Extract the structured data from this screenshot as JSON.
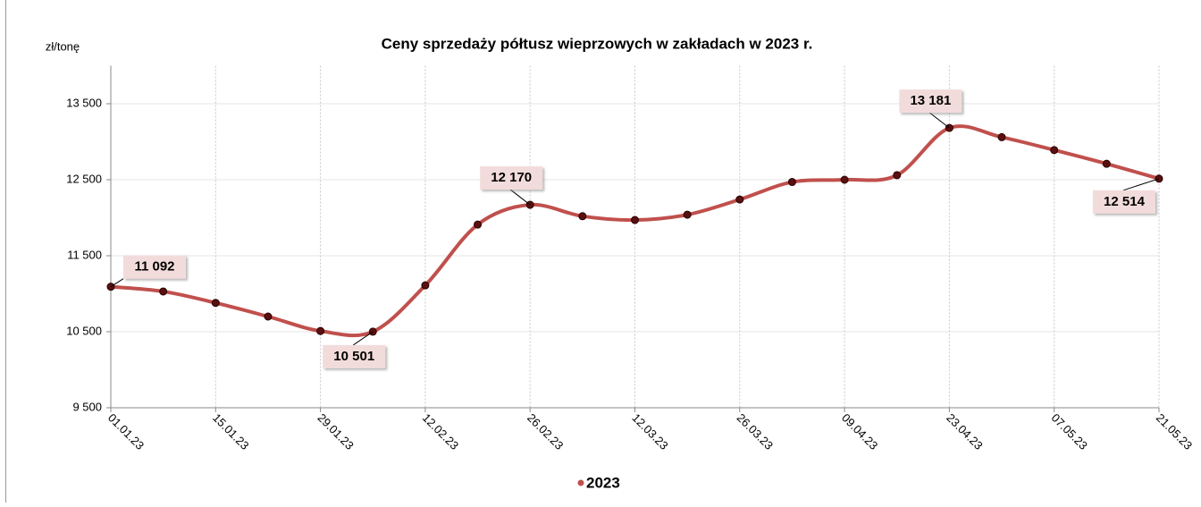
{
  "chart_data": {
    "type": "line",
    "title": "Ceny sprzedaży półtusz wieprzowych w zakładach w 2023 r.",
    "y_label": "zł/tonę",
    "categories": [
      "01.01.23",
      null,
      "15.01.23",
      null,
      "29.01.23",
      null,
      "12.02.23",
      null,
      "26.02.23",
      null,
      "12.03.23",
      null,
      "26.03.23",
      null,
      "09.04.23",
      null,
      "23.04.23",
      null,
      "07.05.23",
      null,
      "21.05.23"
    ],
    "series": [
      {
        "name": "2023",
        "color": "#c0504d",
        "values": [
          11092,
          11030,
          10880,
          10700,
          10510,
          10501,
          11110,
          11910,
          12170,
          12020,
          11970,
          12040,
          12240,
          12470,
          12500,
          12560,
          13181,
          13060,
          12890,
          12710,
          12514
        ],
        "value_labels": [
          "11 092",
          null,
          null,
          null,
          null,
          "10 501",
          null,
          null,
          "12 170",
          null,
          null,
          null,
          null,
          null,
          null,
          null,
          "13 181",
          null,
          null,
          null,
          "12 514"
        ]
      }
    ],
    "ylim": [
      9500,
      14000
    ],
    "yticks": [
      {
        "value": 9500,
        "label": "9 500"
      },
      {
        "value": 10500,
        "label": "10 500"
      },
      {
        "value": 11500,
        "label": "11 500"
      },
      {
        "value": 12500,
        "label": "12 500"
      },
      {
        "value": 13500,
        "label": "13 500"
      }
    ],
    "grid": true
  }
}
